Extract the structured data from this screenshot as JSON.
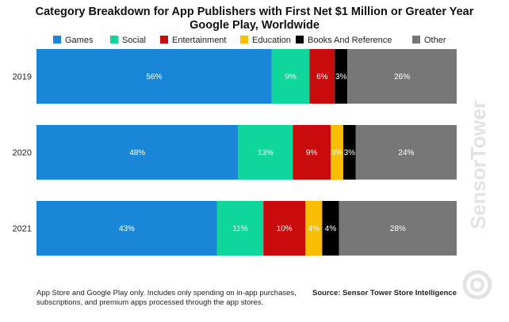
{
  "chart_data": {
    "type": "bar",
    "orientation": "horizontal",
    "stacked": true,
    "percent": true,
    "title_lines": [
      "Category Breakdown for App Publishers with First Net $1 Million or Greater Year",
      "Google Play, Worldwide"
    ],
    "categories": [
      "2019",
      "2020",
      "2021"
    ],
    "xlim": [
      0,
      100
    ],
    "series": [
      {
        "name": "Games",
        "color": "#1a86d8",
        "values": [
          56,
          48,
          43
        ],
        "labels": [
          "56%",
          "48%",
          "43%"
        ]
      },
      {
        "name": "Social",
        "color": "#0fd69b",
        "values": [
          9,
          13,
          11
        ],
        "labels": [
          "9%",
          "13%",
          "11%"
        ]
      },
      {
        "name": "Entertainment",
        "color": "#c80b0b",
        "values": [
          6,
          9,
          10
        ],
        "labels": [
          "6%",
          "9%",
          "10%"
        ]
      },
      {
        "name": "Education",
        "color": "#fbbd00",
        "values": [
          0,
          3,
          4
        ],
        "labels": [
          "",
          "3%",
          "4%"
        ]
      },
      {
        "name": "Books And Reference",
        "color": "#000000",
        "values": [
          3,
          3,
          4
        ],
        "labels": [
          "3%",
          "3%",
          "4%"
        ]
      },
      {
        "name": "Other",
        "color": "#777777",
        "values": [
          26,
          24,
          28
        ],
        "labels": [
          "26%",
          "24%",
          "28%"
        ]
      }
    ],
    "legend_position": "top"
  },
  "footnote_lines": [
    "App Store and Google Play only. Includes only spending on in-app purchases,",
    "subscriptions, and premium apps processed through the app stores."
  ],
  "source": "Source: Sensor Tower Store Intelligence",
  "watermark": "SensorTower"
}
